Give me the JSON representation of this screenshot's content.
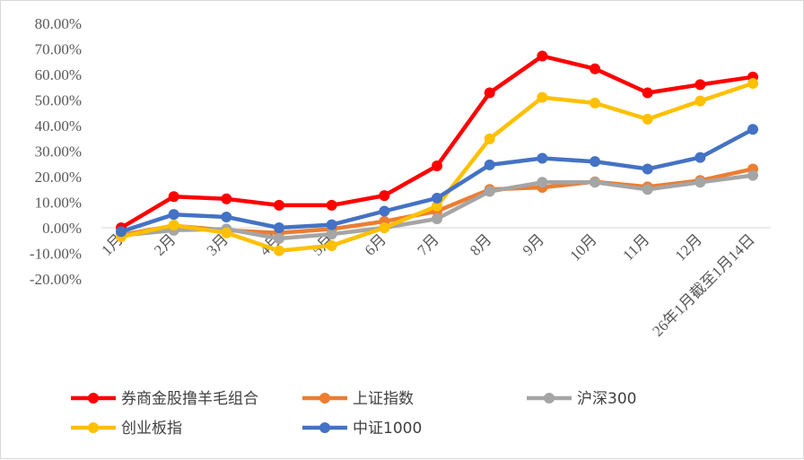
{
  "chart_data": {
    "type": "line",
    "title": "",
    "xlabel": "",
    "ylabel": "",
    "categories": [
      "1月",
      "2月",
      "3月",
      "4月",
      "5月",
      "6月",
      "7月",
      "8月",
      "9月",
      "10月",
      "11月",
      "12月",
      "26年1月截至1月14日"
    ],
    "ylim": [
      -20,
      80
    ],
    "yticks": [
      -20,
      -10,
      0,
      10,
      20,
      30,
      40,
      50,
      60,
      70,
      80
    ],
    "ytick_labels": [
      "-20.00%",
      "-10.00%",
      "0.00%",
      "10.00%",
      "20.00%",
      "30.00%",
      "40.00%",
      "50.00%",
      "60.00%",
      "70.00%",
      "80.00%"
    ],
    "grid": false,
    "legend_position": "bottom",
    "series": [
      {
        "name": "券商金股撸羊毛组合",
        "color": "#ff0000",
        "values": [
          0.0,
          12.2,
          11.3,
          8.8,
          8.8,
          12.6,
          24.2,
          52.8,
          67.2,
          62.2,
          52.8,
          56.0,
          59.0
        ]
      },
      {
        "name": "上证指数",
        "color": "#ed7d31",
        "values": [
          -2.8,
          0.8,
          -1.0,
          -2.0,
          -0.5,
          2.5,
          6.5,
          15.0,
          15.8,
          18.0,
          16.0,
          18.5,
          23.0
        ]
      },
      {
        "name": "沪深300",
        "color": "#a5a5a5",
        "values": [
          -3.0,
          -1.0,
          -0.5,
          -4.2,
          -2.5,
          0.0,
          3.5,
          14.2,
          17.8,
          17.8,
          15.0,
          17.8,
          20.5
        ]
      },
      {
        "name": "创业板指",
        "color": "#ffc000",
        "values": [
          -3.5,
          1.0,
          -2.0,
          -9.0,
          -7.0,
          0.0,
          8.5,
          34.8,
          51.0,
          48.8,
          42.5,
          49.6,
          56.5
        ]
      },
      {
        "name": "中证1000",
        "color": "#4472c4",
        "values": [
          -1.5,
          5.2,
          4.2,
          0.0,
          1.2,
          6.5,
          11.6,
          24.6,
          27.2,
          25.9,
          23.0,
          27.5,
          38.5
        ]
      }
    ]
  }
}
